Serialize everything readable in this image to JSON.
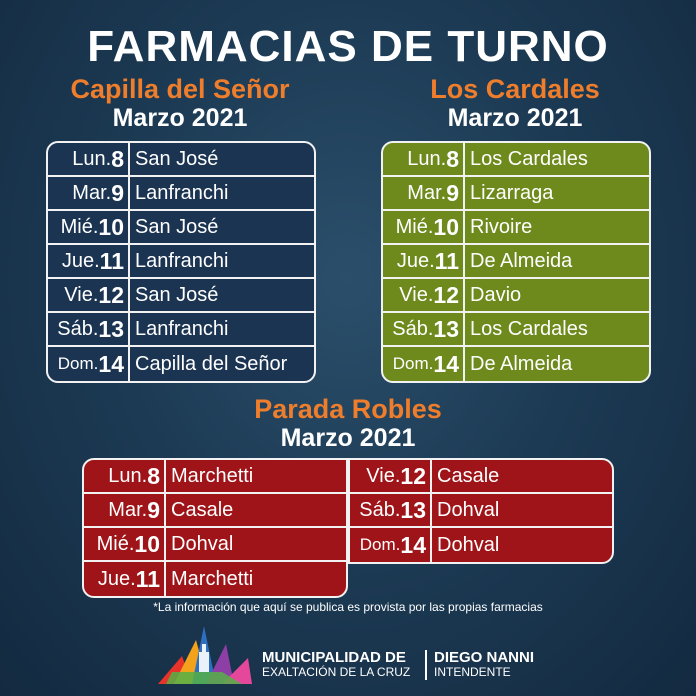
{
  "title": "FARMACIAS DE TURNO",
  "sections": {
    "capilla": {
      "name": "Capilla del Señor",
      "month": "Marzo 2021",
      "color": "#1b3452",
      "rows": [
        {
          "abbr": "Lun.",
          "num": "8",
          "pharmacy": "San José"
        },
        {
          "abbr": "Mar.",
          "num": "9",
          "pharmacy": "Lanfranchi"
        },
        {
          "abbr": "Mié.",
          "num": "10",
          "pharmacy": "San José"
        },
        {
          "abbr": "Jue.",
          "num": "11",
          "pharmacy": "Lanfranchi"
        },
        {
          "abbr": "Vie.",
          "num": "12",
          "pharmacy": "San José"
        },
        {
          "abbr": "Sáb.",
          "num": "13",
          "pharmacy": "Lanfranchi"
        },
        {
          "abbr": "Dom.",
          "num": "14",
          "pharmacy": "Capilla del Señor"
        }
      ]
    },
    "cardales": {
      "name": "Los Cardales",
      "month": "Marzo 2021",
      "color": "#6e8a1c",
      "rows": [
        {
          "abbr": "Lun.",
          "num": "8",
          "pharmacy": "Los Cardales"
        },
        {
          "abbr": "Mar.",
          "num": "9",
          "pharmacy": "Lizarraga"
        },
        {
          "abbr": "Mié.",
          "num": "10",
          "pharmacy": "Rivoire"
        },
        {
          "abbr": "Jue.",
          "num": "11",
          "pharmacy": "De Almeida"
        },
        {
          "abbr": "Vie.",
          "num": "12",
          "pharmacy": "Davio"
        },
        {
          "abbr": "Sáb.",
          "num": "13",
          "pharmacy": "Los Cardales"
        },
        {
          "abbr": "Dom.",
          "num": "14",
          "pharmacy": "De Almeida"
        }
      ]
    },
    "robles": {
      "name": "Parada Robles",
      "month": "Marzo 2021",
      "color": "#9e1418",
      "rows_left": [
        {
          "abbr": "Lun.",
          "num": "8",
          "pharmacy": "Marchetti"
        },
        {
          "abbr": "Mar.",
          "num": "9",
          "pharmacy": "Casale"
        },
        {
          "abbr": "Mié.",
          "num": "10",
          "pharmacy": "Dohval"
        },
        {
          "abbr": "Jue.",
          "num": "11",
          "pharmacy": "Marchetti"
        }
      ],
      "rows_right": [
        {
          "abbr": "Vie.",
          "num": "12",
          "pharmacy": "Casale"
        },
        {
          "abbr": "Sáb.",
          "num": "13",
          "pharmacy": "Dohval"
        },
        {
          "abbr": "Dom.",
          "num": "14",
          "pharmacy": "Dohval"
        }
      ]
    }
  },
  "footnote": "*La información que aquí se publica es provista por las propias farmacias",
  "footer": {
    "muni_line1": "MUNICIPALIDAD DE",
    "muni_line2": "EXALTACIÓN DE LA CRUZ",
    "mayor_line1": "DIEGO NANNI",
    "mayor_line2": "INTENDENTE"
  },
  "colors": {
    "accent_orange": "#ee7d2c",
    "background": "#1d3b55"
  },
  "logo_icon": "municipal-logo-icon"
}
